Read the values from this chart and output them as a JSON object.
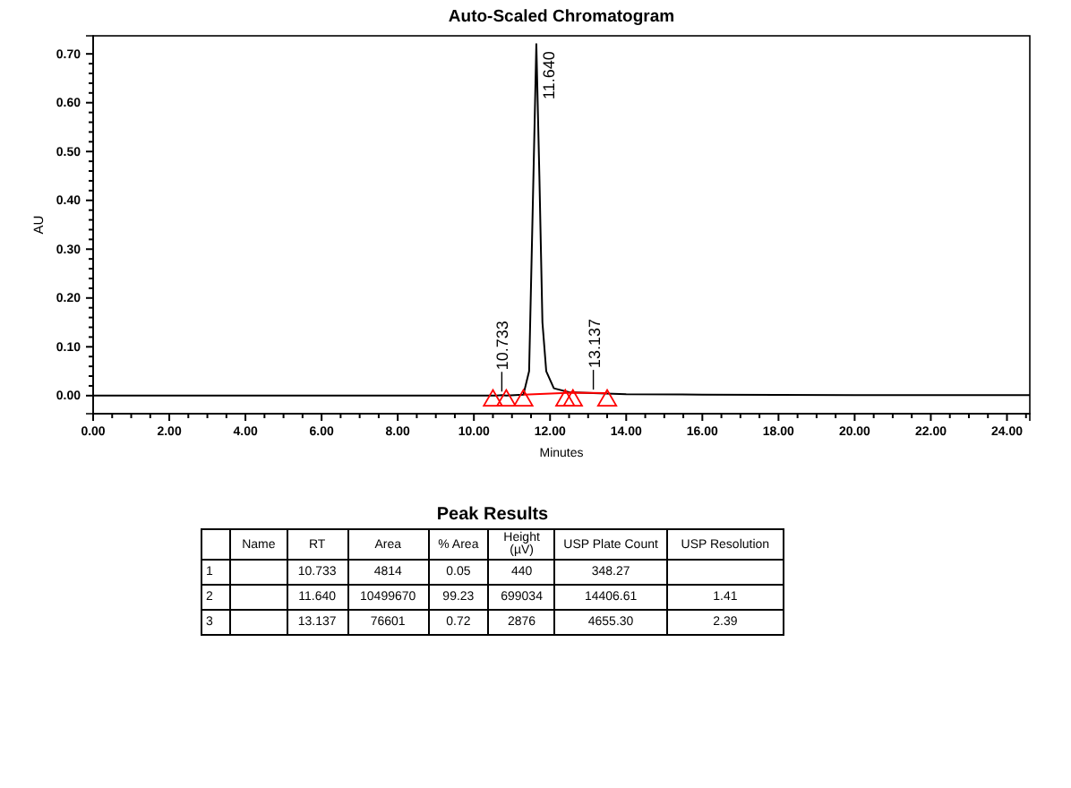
{
  "chart_data": [
    {
      "type": "line",
      "title": "Auto-Scaled Chromatogram",
      "xlabel": "Minutes",
      "ylabel": "AU",
      "grid": false,
      "xlim": [
        0,
        24.6
      ],
      "ylim": [
        -0.037,
        0.737
      ],
      "xticks": [
        {
          "value": 0,
          "label": "0.00"
        },
        {
          "value": 0.5,
          "label": null
        },
        {
          "value": 1,
          "label": null
        },
        {
          "value": 1.5,
          "label": null
        },
        {
          "value": 2,
          "label": "2.00"
        },
        {
          "value": 2.5,
          "label": null
        },
        {
          "value": 3,
          "label": null
        },
        {
          "value": 3.5,
          "label": null
        },
        {
          "value": 4,
          "label": "4.00"
        },
        {
          "value": 4.5,
          "label": null
        },
        {
          "value": 5,
          "label": null
        },
        {
          "value": 5.5,
          "label": null
        },
        {
          "value": 6,
          "label": "6.00"
        },
        {
          "value": 6.5,
          "label": null
        },
        {
          "value": 7,
          "label": null
        },
        {
          "value": 7.5,
          "label": null
        },
        {
          "value": 8,
          "label": "8.00"
        },
        {
          "value": 8.5,
          "label": null
        },
        {
          "value": 9,
          "label": null
        },
        {
          "value": 9.5,
          "label": null
        },
        {
          "value": 10,
          "label": "10.00"
        },
        {
          "value": 10.5,
          "label": null
        },
        {
          "value": 11,
          "label": null
        },
        {
          "value": 11.5,
          "label": null
        },
        {
          "value": 12,
          "label": "12.00"
        },
        {
          "value": 12.5,
          "label": null
        },
        {
          "value": 13,
          "label": null
        },
        {
          "value": 13.5,
          "label": null
        },
        {
          "value": 14,
          "label": "14.00"
        },
        {
          "value": 14.5,
          "label": null
        },
        {
          "value": 15,
          "label": null
        },
        {
          "value": 15.5,
          "label": null
        },
        {
          "value": 16,
          "label": "16.00"
        },
        {
          "value": 16.5,
          "label": null
        },
        {
          "value": 17,
          "label": null
        },
        {
          "value": 17.5,
          "label": null
        },
        {
          "value": 18,
          "label": "18.00"
        },
        {
          "value": 18.5,
          "label": null
        },
        {
          "value": 19,
          "label": null
        },
        {
          "value": 19.5,
          "label": null
        },
        {
          "value": 20,
          "label": "20.00"
        },
        {
          "value": 20.5,
          "label": null
        },
        {
          "value": 21,
          "label": null
        },
        {
          "value": 21.5,
          "label": null
        },
        {
          "value": 22,
          "label": "22.00"
        },
        {
          "value": 22.5,
          "label": null
        },
        {
          "value": 23,
          "label": null
        },
        {
          "value": 23.5,
          "label": null
        },
        {
          "value": 24,
          "label": "24.00"
        },
        {
          "value": 24.5,
          "label": null
        }
      ],
      "yticks": [
        {
          "value": 0,
          "label": "0.00"
        },
        {
          "value": 0.02,
          "label": null
        },
        {
          "value": 0.04,
          "label": null
        },
        {
          "value": 0.06,
          "label": null
        },
        {
          "value": 0.08,
          "label": null
        },
        {
          "value": 0.1,
          "label": "0.10"
        },
        {
          "value": 0.12,
          "label": null
        },
        {
          "value": 0.14,
          "label": null
        },
        {
          "value": 0.16,
          "label": null
        },
        {
          "value": 0.18,
          "label": null
        },
        {
          "value": 0.2,
          "label": "0.20"
        },
        {
          "value": 0.22,
          "label": null
        },
        {
          "value": 0.24,
          "label": null
        },
        {
          "value": 0.26,
          "label": null
        },
        {
          "value": 0.28,
          "label": null
        },
        {
          "value": 0.3,
          "label": "0.30"
        },
        {
          "value": 0.32,
          "label": null
        },
        {
          "value": 0.34,
          "label": null
        },
        {
          "value": 0.36,
          "label": null
        },
        {
          "value": 0.38,
          "label": null
        },
        {
          "value": 0.4,
          "label": "0.40"
        },
        {
          "value": 0.42,
          "label": null
        },
        {
          "value": 0.44,
          "label": null
        },
        {
          "value": 0.46,
          "label": null
        },
        {
          "value": 0.48,
          "label": null
        },
        {
          "value": 0.5,
          "label": "0.50"
        },
        {
          "value": 0.52,
          "label": null
        },
        {
          "value": 0.54,
          "label": null
        },
        {
          "value": 0.56,
          "label": null
        },
        {
          "value": 0.58,
          "label": null
        },
        {
          "value": 0.6,
          "label": "0.60"
        },
        {
          "value": 0.62,
          "label": null
        },
        {
          "value": 0.64,
          "label": null
        },
        {
          "value": 0.66,
          "label": null
        },
        {
          "value": 0.68,
          "label": null
        },
        {
          "value": 0.7,
          "label": "0.70"
        }
      ],
      "series": [
        {
          "type": "line",
          "color": "#000000",
          "marker": "none",
          "x": [
            0,
            10.6,
            10.733,
            10.85,
            11.3,
            11.45,
            11.55,
            11.64,
            11.72,
            11.8,
            11.9,
            12.1,
            12.5,
            13.137,
            14,
            16,
            20,
            24.6
          ],
          "values": [
            0,
            0,
            0.001,
            0,
            0.002,
            0.05,
            0.4,
            0.72,
            0.45,
            0.15,
            0.05,
            0.015,
            0.007,
            0.005,
            0.003,
            0.002,
            0.001,
            0.001
          ]
        },
        {
          "type": "line",
          "color": "#ff0000",
          "marker": "none",
          "x": [
            11.3,
            12.6,
            13.5
          ],
          "values": [
            0.002,
            0.006,
            0.005
          ]
        },
        {
          "type": "scatter",
          "color": "#ff0000",
          "marker": "triangle",
          "x": [
            10.5,
            10.85,
            11.3,
            12.4,
            12.6,
            13.5
          ],
          "values": [
            -0.01,
            -0.01,
            -0.01,
            -0.01,
            -0.01,
            -0.01
          ]
        }
      ],
      "annotations": [
        {
          "text": "10.733",
          "x": 10.733,
          "y": 0.001
        },
        {
          "text": "11.640",
          "x": 11.64,
          "y": 0.72
        },
        {
          "text": "13.137",
          "x": 13.137,
          "y": 0.005
        }
      ]
    },
    {
      "type": "other",
      "title": "Peak Results",
      "categories": [
        null,
        "Name",
        "RT",
        "Area",
        "% Area",
        "Height (µV)",
        "USP Plate Count",
        "USP Resolution"
      ],
      "cell_labels": [
        [
          "1",
          null,
          "10.733",
          "4814",
          "0.05",
          "440",
          "348.27",
          null
        ],
        [
          "2",
          null,
          "11.640",
          "10499670",
          "99.23",
          "699034",
          "14406.61",
          "1.41"
        ],
        [
          "3",
          null,
          "13.137",
          "76601",
          "0.72",
          "2876",
          "4655.30",
          "2.39"
        ]
      ]
    }
  ]
}
